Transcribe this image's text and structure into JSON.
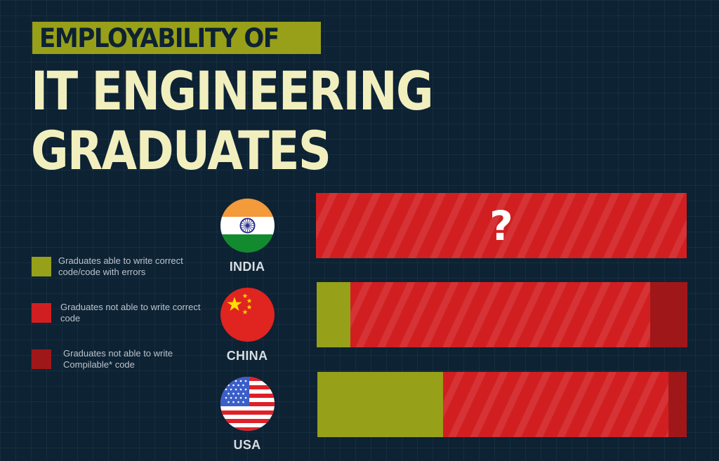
{
  "header": {
    "banner": "EMPLOYABILITY OF",
    "title_line1": "IT ENGINEERING",
    "title_line2": "GRADUATES"
  },
  "colors": {
    "background": "#0d2233",
    "banner": "#97a018",
    "title": "#f2efbf",
    "correct": "#96a019",
    "incorrect": "#d11f21",
    "noncompile": "#a0171a"
  },
  "legend": [
    {
      "label": "Graduates able to write correct code/code with errors",
      "color": "#96a019"
    },
    {
      "label": "Graduates not able to write correct code",
      "color": "#d11f21"
    },
    {
      "label": "Graduates not able to write Compilable* code",
      "color": "#a0171a"
    }
  ],
  "countries": [
    {
      "name": "INDIA",
      "flag": "india-flag",
      "bar_label": "?"
    },
    {
      "name": "CHINA",
      "flag": "china-flag",
      "bar_label": ""
    },
    {
      "name": "USA",
      "flag": "usa-flag",
      "bar_label": ""
    }
  ],
  "chart_data": {
    "type": "bar",
    "orientation": "horizontal",
    "stacked": true,
    "title": "EMPLOYABILITY OF IT ENGINEERING GRADUATES",
    "categories": [
      "INDIA",
      "CHINA",
      "USA"
    ],
    "series": [
      {
        "name": "Graduates able to write correct code/code with errors",
        "values": [
          null,
          9,
          34
        ]
      },
      {
        "name": "Graduates not able to write correct code",
        "values": [
          null,
          81,
          61
        ]
      },
      {
        "name": "Graduates not able to write Compilable* code",
        "values": [
          null,
          10,
          5
        ]
      }
    ],
    "annotations": [
      {
        "category": "INDIA",
        "text": "?"
      }
    ],
    "xlim": [
      0,
      100
    ],
    "units": "percent of graduates (estimated from bar widths)",
    "grid": false,
    "legend_position": "left"
  }
}
